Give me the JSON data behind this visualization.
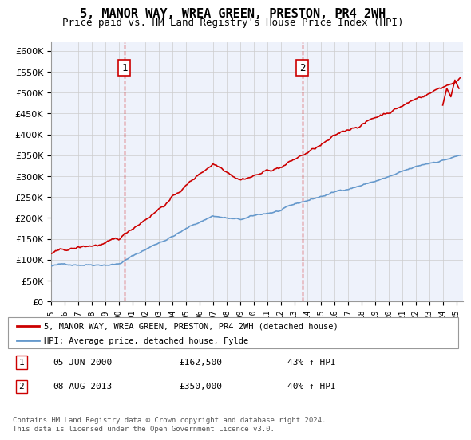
{
  "title": "5, MANOR WAY, WREA GREEN, PRESTON, PR4 2WH",
  "subtitle": "Price paid vs. HM Land Registry's House Price Index (HPI)",
  "background_color": "#eef2fb",
  "plot_bg_color": "#eef2fb",
  "red_line_label": "5, MANOR WAY, WREA GREEN, PRESTON, PR4 2WH (detached house)",
  "blue_line_label": "HPI: Average price, detached house, Fylde",
  "sale1_date": "05-JUN-2000",
  "sale1_price": 162500,
  "sale1_hpi": "43% ↑ HPI",
  "sale2_date": "08-AUG-2013",
  "sale2_price": 350000,
  "sale2_hpi": "40% ↑ HPI",
  "sale1_year": 2000.43,
  "sale2_year": 2013.6,
  "ylim_min": 0,
  "ylim_max": 620000,
  "xlim_min": 1995,
  "xlim_max": 2025.5,
  "footer": "Contains HM Land Registry data © Crown copyright and database right 2024.\nThis data is licensed under the Open Government Licence v3.0.",
  "yticks": [
    0,
    50000,
    100000,
    150000,
    200000,
    250000,
    300000,
    350000,
    400000,
    450000,
    500000,
    550000,
    600000
  ],
  "xticks": [
    1995,
    1996,
    1997,
    1998,
    1999,
    2000,
    2001,
    2002,
    2003,
    2004,
    2005,
    2006,
    2007,
    2008,
    2009,
    2010,
    2011,
    2012,
    2013,
    2014,
    2015,
    2016,
    2017,
    2018,
    2019,
    2020,
    2021,
    2022,
    2023,
    2024,
    2025
  ]
}
